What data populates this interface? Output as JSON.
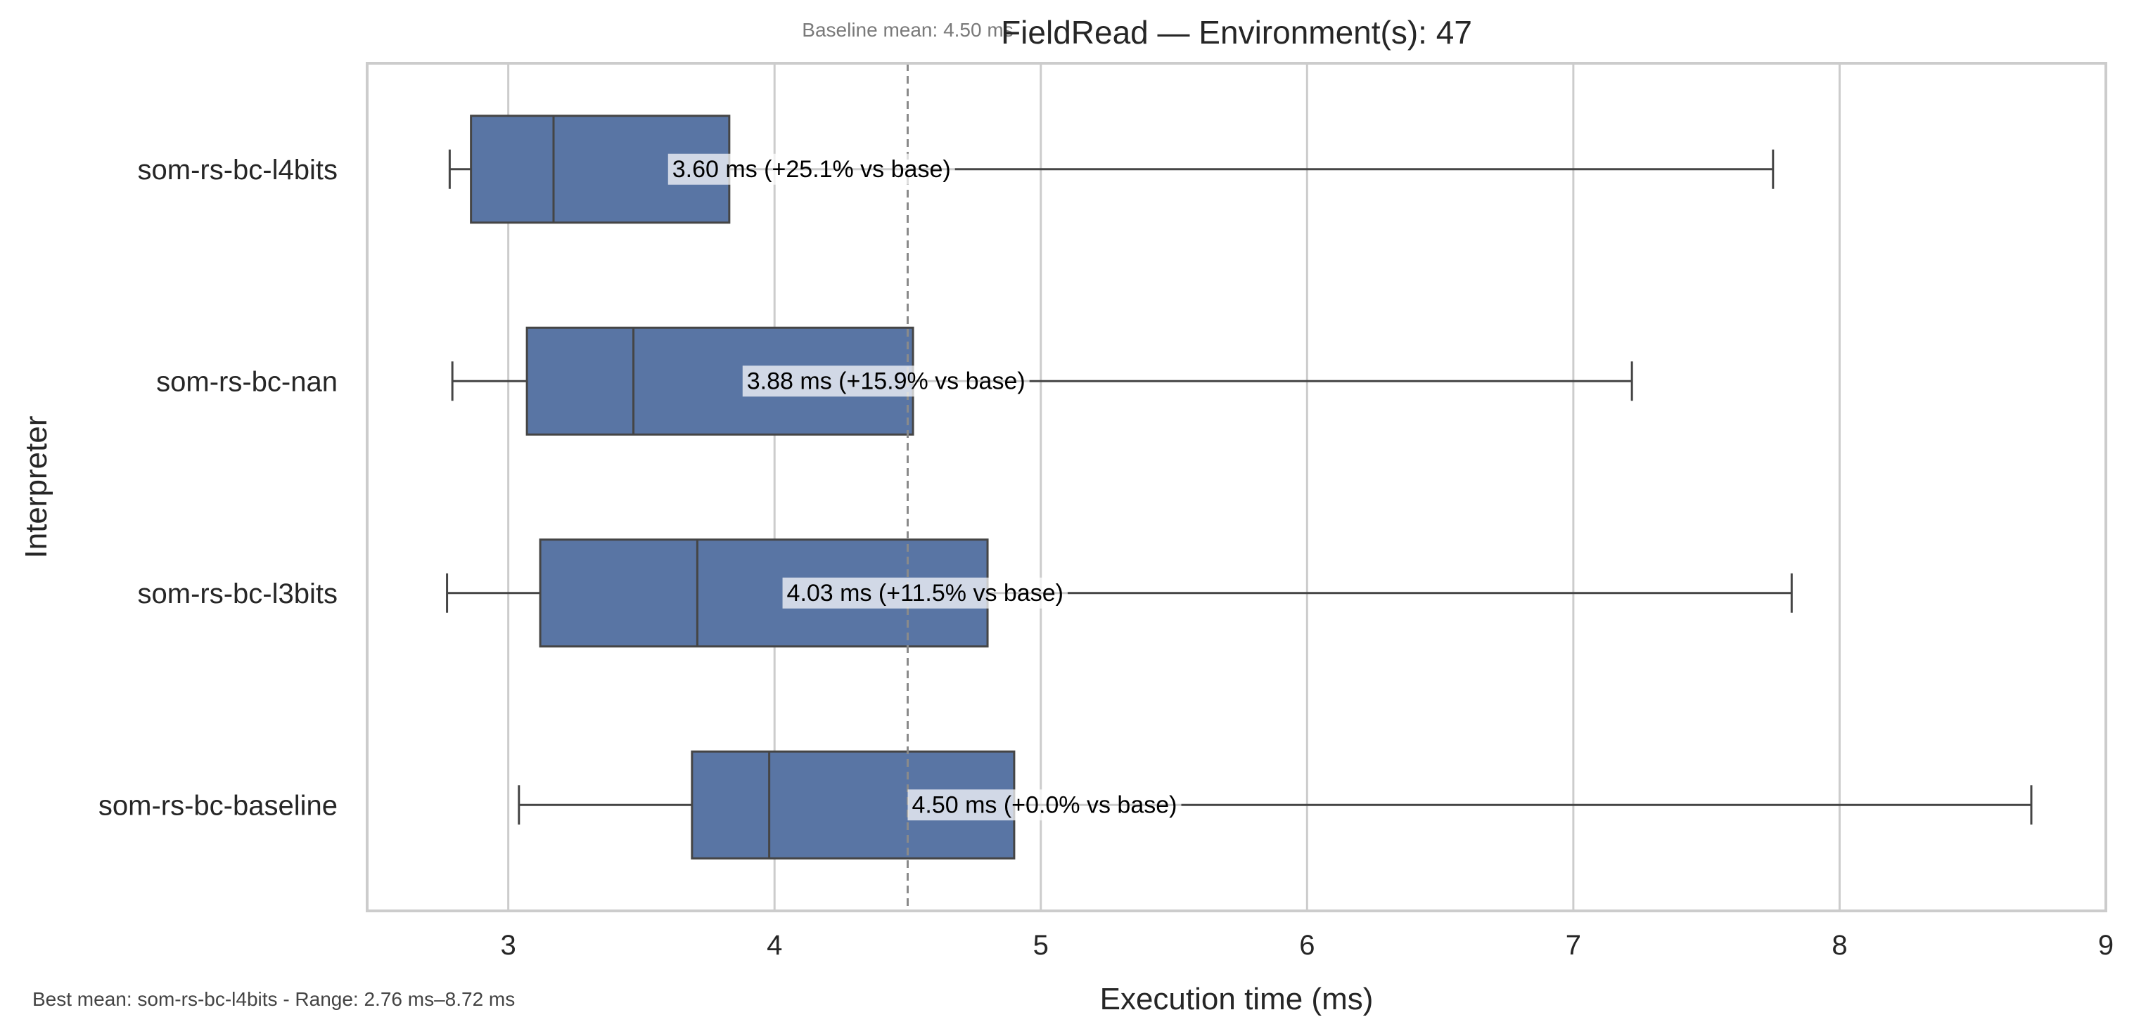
{
  "chart_data": {
    "type": "box",
    "orientation": "horizontal",
    "title": "FieldRead — Environment(s): 47",
    "xlabel": "Execution time (ms)",
    "ylabel": "Interpreter",
    "xlim": [
      2.47,
      9.0
    ],
    "xticks": [
      3,
      4,
      5,
      6,
      7,
      8,
      9
    ],
    "grid": "vertical",
    "baseline": {
      "value": 4.5,
      "label": "Baseline mean: 4.50 ms"
    },
    "categories": [
      "som-rs-bc-l4bits",
      "som-rs-bc-nan",
      "som-rs-bc-l3bits",
      "som-rs-bc-baseline"
    ],
    "boxes": [
      {
        "name": "som-rs-bc-l4bits",
        "whisker_low": 2.78,
        "q1": 2.86,
        "median": 3.17,
        "q3": 3.83,
        "whisker_high": 7.75,
        "annotation_x": 3.6,
        "annotation": "3.60 ms  (+25.1% vs base)"
      },
      {
        "name": "som-rs-bc-nan",
        "whisker_low": 2.79,
        "q1": 3.07,
        "median": 3.47,
        "q3": 4.52,
        "whisker_high": 7.22,
        "annotation_x": 3.88,
        "annotation": "3.88 ms  (+15.9% vs base)"
      },
      {
        "name": "som-rs-bc-l3bits",
        "whisker_low": 2.77,
        "q1": 3.12,
        "median": 3.71,
        "q3": 4.8,
        "whisker_high": 7.82,
        "annotation_x": 4.03,
        "annotation": "4.03 ms  (+11.5% vs base)"
      },
      {
        "name": "som-rs-bc-baseline",
        "whisker_low": 3.04,
        "q1": 3.69,
        "median": 3.98,
        "q3": 4.9,
        "whisker_high": 8.72,
        "annotation_x": 4.5,
        "annotation": "4.50 ms  (+0.0% vs base)"
      }
    ],
    "colors": {
      "box": "#5975a4",
      "edge": "#454545",
      "grid": "#cccccc",
      "baseline": "#8a8a8a",
      "label_bg": "#ffffff"
    }
  },
  "footer": "Best mean: som-rs-bc-l4bits - Range: 2.76 ms–8.72 ms"
}
